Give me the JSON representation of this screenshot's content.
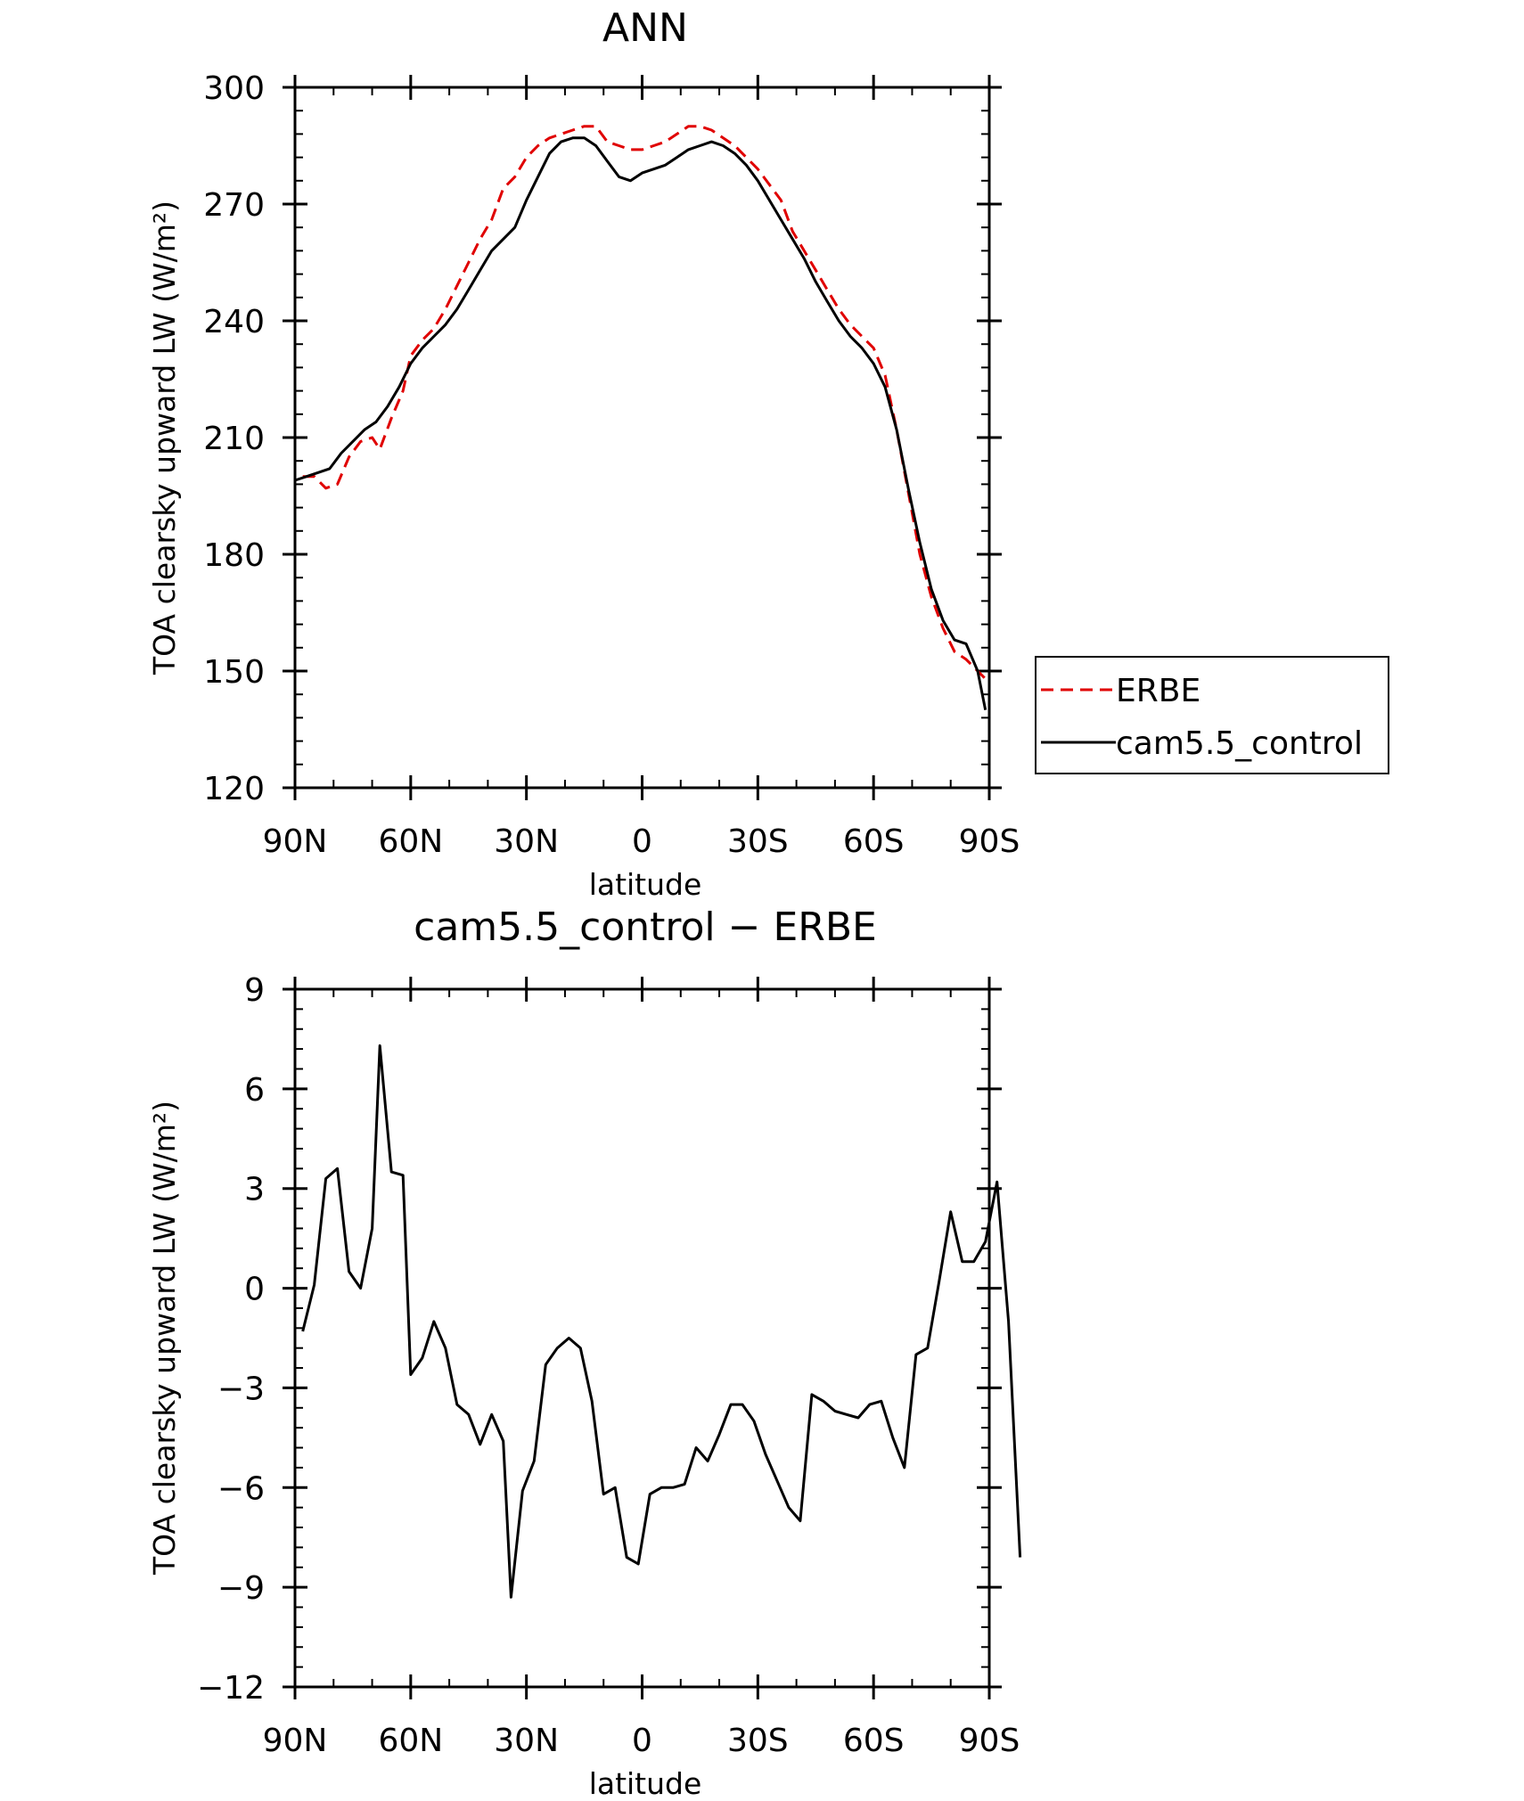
{
  "chart_data": [
    {
      "type": "line",
      "title": "ANN",
      "xlabel": "latitude",
      "ylabel": "TOA clearsky upward LW (W/m²)",
      "xlim": [
        -90,
        90
      ],
      "ylim": [
        120,
        300
      ],
      "x_ticks": [
        -90,
        -60,
        -30,
        0,
        30,
        60,
        90
      ],
      "x_tick_labels": [
        "90N",
        "60N",
        "30N",
        "0",
        "30S",
        "60S",
        "90S"
      ],
      "y_ticks": [
        120,
        150,
        180,
        210,
        240,
        270,
        300
      ],
      "y_tick_labels": [
        "120",
        "150",
        "180",
        "210",
        "240",
        "270",
        "300"
      ],
      "legend_position": "right",
      "series": [
        {
          "name": "ERBE",
          "color": "#e00000",
          "dash": true,
          "points": [
            [
              -88,
              200
            ],
            [
              -85,
              200
            ],
            [
              -82,
              197
            ],
            [
              -79,
              198
            ],
            [
              -76,
              205
            ],
            [
              -73,
              209
            ],
            [
              -70,
              210
            ],
            [
              -68,
              207
            ],
            [
              -65,
              215
            ],
            [
              -62,
              222
            ],
            [
              -60,
              231
            ],
            [
              -57,
              235
            ],
            [
              -54,
              238
            ],
            [
              -51,
              243
            ],
            [
              -48,
              249
            ],
            [
              -45,
              255
            ],
            [
              -42,
              261
            ],
            [
              -39,
              266
            ],
            [
              -36,
              274
            ],
            [
              -33,
              277
            ],
            [
              -30,
              282
            ],
            [
              -27,
              285
            ],
            [
              -24,
              287
            ],
            [
              -21,
              288
            ],
            [
              -18,
              289
            ],
            [
              -15,
              290
            ],
            [
              -12,
              290
            ],
            [
              -9,
              286
            ],
            [
              -6,
              285
            ],
            [
              -3,
              284
            ],
            [
              0,
              284
            ],
            [
              3,
              285
            ],
            [
              6,
              286
            ],
            [
              9,
              288
            ],
            [
              12,
              290
            ],
            [
              15,
              290
            ],
            [
              18,
              289
            ],
            [
              21,
              287
            ],
            [
              24,
              285
            ],
            [
              27,
              282
            ],
            [
              30,
              279
            ],
            [
              33,
              275
            ],
            [
              36,
              271
            ],
            [
              39,
              263
            ],
            [
              42,
              258
            ],
            [
              45,
              253
            ],
            [
              48,
              248
            ],
            [
              51,
              243
            ],
            [
              54,
              239
            ],
            [
              57,
              236
            ],
            [
              60,
              233
            ],
            [
              63,
              226
            ],
            [
              66,
              212
            ],
            [
              69,
              196
            ],
            [
              72,
              180
            ],
            [
              75,
              169
            ],
            [
              78,
              161
            ],
            [
              81,
              155
            ],
            [
              84,
              153
            ],
            [
              87,
              150
            ],
            [
              89,
              148
            ]
          ]
        },
        {
          "name": "cam5.5_control",
          "color": "#000000",
          "dash": false,
          "points": [
            [
              -90,
              199
            ],
            [
              -87,
              200
            ],
            [
              -84,
              201
            ],
            [
              -81,
              202
            ],
            [
              -78,
              206
            ],
            [
              -75,
              209
            ],
            [
              -72,
              212
            ],
            [
              -69,
              214
            ],
            [
              -66,
              218
            ],
            [
              -63,
              223
            ],
            [
              -60,
              229
            ],
            [
              -57,
              233
            ],
            [
              -54,
              236
            ],
            [
              -51,
              239
            ],
            [
              -48,
              243
            ],
            [
              -45,
              248
            ],
            [
              -42,
              253
            ],
            [
              -39,
              258
            ],
            [
              -36,
              261
            ],
            [
              -33,
              264
            ],
            [
              -30,
              271
            ],
            [
              -27,
              277
            ],
            [
              -24,
              283
            ],
            [
              -21,
              286
            ],
            [
              -18,
              287
            ],
            [
              -15,
              287
            ],
            [
              -12,
              285
            ],
            [
              -9,
              281
            ],
            [
              -6,
              277
            ],
            [
              -3,
              276
            ],
            [
              0,
              278
            ],
            [
              3,
              279
            ],
            [
              6,
              280
            ],
            [
              9,
              282
            ],
            [
              12,
              284
            ],
            [
              15,
              285
            ],
            [
              18,
              286
            ],
            [
              21,
              285
            ],
            [
              24,
              283
            ],
            [
              27,
              280
            ],
            [
              30,
              276
            ],
            [
              33,
              271
            ],
            [
              36,
              266
            ],
            [
              39,
              261
            ],
            [
              42,
              256
            ],
            [
              45,
              250
            ],
            [
              48,
              245
            ],
            [
              51,
              240
            ],
            [
              54,
              236
            ],
            [
              57,
              233
            ],
            [
              60,
              229
            ],
            [
              63,
              223
            ],
            [
              66,
              212
            ],
            [
              69,
              197
            ],
            [
              72,
              183
            ],
            [
              75,
              171
            ],
            [
              78,
              163
            ],
            [
              81,
              158
            ],
            [
              84,
              157
            ],
            [
              87,
              150
            ],
            [
              89,
              140
            ]
          ]
        }
      ]
    },
    {
      "type": "line",
      "title": "cam5.5_control − ERBE",
      "xlabel": "latitude",
      "ylabel": "TOA clearsky upward LW (W/m²)",
      "xlim": [
        -90,
        90
      ],
      "ylim": [
        -12,
        9
      ],
      "x_ticks": [
        -90,
        -60,
        -30,
        0,
        30,
        60,
        90
      ],
      "x_tick_labels": [
        "90N",
        "60N",
        "30N",
        "0",
        "30S",
        "60S",
        "90S"
      ],
      "y_ticks": [
        -12,
        -9,
        -6,
        -3,
        0,
        3,
        6,
        9
      ],
      "y_tick_labels": [
        "−12",
        "−9",
        "−6",
        "−3",
        "0",
        "3",
        "6",
        "9"
      ],
      "series": [
        {
          "name": "cam5.5_control − ERBE",
          "color": "#000000",
          "dash": false,
          "points": [
            [
              -88,
              -1.3
            ],
            [
              -85,
              0.1
            ],
            [
              -82,
              3.3
            ],
            [
              -79,
              3.6
            ],
            [
              -76,
              0.5
            ],
            [
              -73,
              0.0
            ],
            [
              -70,
              1.8
            ],
            [
              -68,
              7.3
            ],
            [
              -65,
              3.5
            ],
            [
              -62,
              3.4
            ],
            [
              -60,
              -2.6
            ],
            [
              -57,
              -2.1
            ],
            [
              -54,
              -1.0
            ],
            [
              -51,
              -1.8
            ],
            [
              -48,
              -3.5
            ],
            [
              -45,
              -3.8
            ],
            [
              -42,
              -4.7
            ],
            [
              -39,
              -3.8
            ],
            [
              -36,
              -4.6
            ],
            [
              -34,
              -9.3
            ],
            [
              -31,
              -6.1
            ],
            [
              -28,
              -5.2
            ],
            [
              -25,
              -2.3
            ],
            [
              -22,
              -1.8
            ],
            [
              -19,
              -1.5
            ],
            [
              -16,
              -1.8
            ],
            [
              -13,
              -3.4
            ],
            [
              -10,
              -6.2
            ],
            [
              -7,
              -6.0
            ],
            [
              -4,
              -8.1
            ],
            [
              -1,
              -8.3
            ],
            [
              2,
              -6.2
            ],
            [
              5,
              -6.0
            ],
            [
              8,
              -6.0
            ],
            [
              11,
              -5.9
            ],
            [
              14,
              -4.8
            ],
            [
              17,
              -5.2
            ],
            [
              20,
              -4.4
            ],
            [
              23,
              -3.5
            ],
            [
              26,
              -3.5
            ],
            [
              29,
              -4.0
            ],
            [
              32,
              -5.0
            ],
            [
              35,
              -5.8
            ],
            [
              38,
              -6.6
            ],
            [
              41,
              -7.0
            ],
            [
              44,
              -3.2
            ],
            [
              47,
              -3.4
            ],
            [
              50,
              -3.7
            ],
            [
              53,
              -3.8
            ],
            [
              56,
              -3.9
            ],
            [
              59,
              -3.5
            ],
            [
              62,
              -3.4
            ],
            [
              65,
              -4.5
            ],
            [
              68,
              -5.4
            ],
            [
              71,
              -2.0
            ],
            [
              74,
              -1.8
            ],
            [
              77,
              0.2
            ],
            [
              80,
              2.3
            ],
            [
              83,
              0.8
            ],
            [
              86,
              0.8
            ],
            [
              89,
              1.4
            ],
            [
              92,
              3.2
            ],
            [
              95,
              -1.0
            ],
            [
              98,
              -8.1
            ]
          ]
        }
      ]
    }
  ]
}
